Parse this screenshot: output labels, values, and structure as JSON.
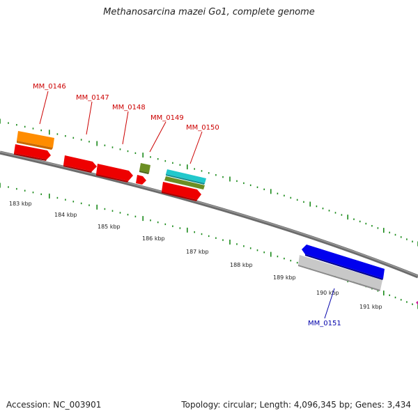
{
  "header": {
    "title": "Methanosarcina mazei Go1, complete genome"
  },
  "footer": {
    "accession_label": "Accession:",
    "accession_value": "NC_003901",
    "topology_label": "Topology:",
    "topology_value": "circular",
    "length_label": "Length:",
    "length_value": "4,096,345 bp",
    "genes_label": "Genes:",
    "genes_value": "3,434"
  },
  "scale": {
    "ticks": [
      "183 kbp",
      "184 kbp",
      "185 kbp",
      "186 kbp",
      "187 kbp",
      "188 kbp",
      "189 kbp",
      "190 kbp",
      "191 kbp"
    ]
  },
  "genes": {
    "labels": [
      "MM_0146",
      "MM_0147",
      "MM_0148",
      "MM_0149",
      "MM_0150",
      "MM_0151"
    ]
  },
  "colors": {
    "backbone": "#6b6b6b",
    "tick_green": "#1a8a1a",
    "label_red": "#cc0000",
    "label_blue": "#0000aa",
    "gene_red": "#ee0000",
    "gene_orange": "#ff8c00",
    "gene_olive": "#6b8e23",
    "gene_cyan": "#22c8cc",
    "gene_blue": "#0000ee",
    "gene_grey": "#c8c8c8",
    "accent_pink": "#cc2299"
  }
}
